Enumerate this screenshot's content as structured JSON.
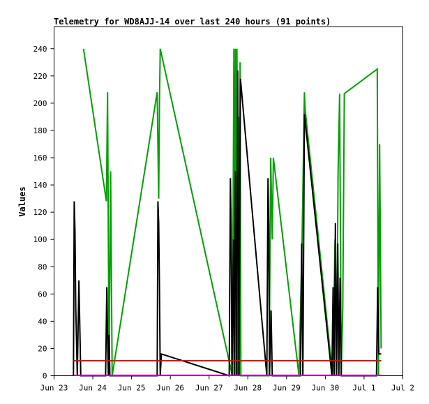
{
  "chart_data": {
    "type": "line",
    "title": "Telemetry for WD8AJJ-14 over last 240 hours (91 points)",
    "ylabel": "Values",
    "xlabel": "",
    "x_ticks": [
      "Jun 23",
      "Jun 24",
      "Jun 25",
      "Jun 26",
      "Jun 27",
      "Jun 28",
      "Jun 29",
      "Jun 30",
      "Jul 1",
      "Jul 2"
    ],
    "xlim": [
      0,
      9
    ],
    "y_ticks": [
      "0",
      "20",
      "40",
      "60",
      "80",
      "100",
      "120",
      "140",
      "160",
      "180",
      "200",
      "220",
      "240"
    ],
    "ylim": [
      0,
      256
    ],
    "grid": false,
    "legend": "none",
    "series": [
      {
        "color": "#00a000",
        "points": [
          [
            0.76,
            240
          ],
          [
            1.35,
            128
          ],
          [
            1.38,
            208
          ],
          [
            1.42,
            0
          ],
          [
            1.46,
            150
          ],
          [
            1.5,
            0
          ],
          [
            2.66,
            208
          ],
          [
            2.7,
            130
          ],
          [
            2.72,
            200
          ],
          [
            2.74,
            240
          ],
          [
            4.6,
            0
          ],
          [
            4.64,
            240
          ],
          [
            4.66,
            0
          ],
          [
            4.68,
            240
          ],
          [
            4.7,
            0
          ],
          [
            4.72,
            240
          ],
          [
            4.74,
            0
          ],
          [
            4.76,
            190
          ],
          [
            4.78,
            0
          ],
          [
            4.8,
            230
          ],
          [
            4.82,
            0
          ],
          [
            5.55,
            0
          ],
          [
            5.59,
            160
          ],
          [
            5.63,
            100
          ],
          [
            5.66,
            160
          ],
          [
            6.32,
            0
          ],
          [
            6.4,
            100
          ],
          [
            6.46,
            208
          ],
          [
            6.48,
            195
          ],
          [
            7.19,
            0
          ],
          [
            7.25,
            100
          ],
          [
            7.29,
            0
          ],
          [
            7.33,
            150
          ],
          [
            7.37,
            207
          ],
          [
            7.41,
            0
          ],
          [
            7.45,
            50
          ],
          [
            7.49,
            207
          ],
          [
            8.34,
            225
          ],
          [
            8.37,
            0
          ],
          [
            8.4,
            170
          ],
          [
            8.44,
            20
          ]
        ]
      },
      {
        "color": "#000000",
        "points": [
          [
            0.5,
            0
          ],
          [
            0.52,
            128
          ],
          [
            0.54,
            106
          ],
          [
            0.56,
            50
          ],
          [
            0.6,
            0
          ],
          [
            0.64,
            70
          ],
          [
            0.69,
            0
          ],
          [
            1.33,
            0
          ],
          [
            1.36,
            65
          ],
          [
            1.38,
            30
          ],
          [
            1.4,
            0
          ],
          [
            1.42,
            30
          ],
          [
            1.44,
            0
          ],
          [
            2.66,
            0
          ],
          [
            2.68,
            128
          ],
          [
            2.7,
            112
          ],
          [
            2.72,
            65
          ],
          [
            2.74,
            0
          ],
          [
            2.77,
            16
          ],
          [
            4.52,
            0
          ],
          [
            4.55,
            145
          ],
          [
            4.57,
            108
          ],
          [
            4.59,
            0
          ],
          [
            4.63,
            100
          ],
          [
            4.65,
            0
          ],
          [
            4.68,
            150
          ],
          [
            4.71,
            0
          ],
          [
            4.74,
            224
          ],
          [
            4.77,
            0
          ],
          [
            4.81,
            218
          ],
          [
            5.49,
            0
          ],
          [
            5.52,
            145
          ],
          [
            5.54,
            110
          ],
          [
            5.56,
            0
          ],
          [
            5.6,
            48
          ],
          [
            5.63,
            0
          ],
          [
            6.36,
            0
          ],
          [
            6.39,
            97
          ],
          [
            6.42,
            0
          ],
          [
            6.46,
            192
          ],
          [
            7.17,
            0
          ],
          [
            7.2,
            65
          ],
          [
            7.23,
            0
          ],
          [
            7.26,
            112
          ],
          [
            7.29,
            0
          ],
          [
            7.32,
            97
          ],
          [
            7.35,
            0
          ],
          [
            7.38,
            72
          ],
          [
            7.41,
            0
          ],
          [
            8.32,
            0
          ],
          [
            8.35,
            65
          ],
          [
            8.38,
            16
          ],
          [
            8.44,
            16
          ]
        ]
      },
      {
        "color": "#e00000",
        "points": [
          [
            0.5,
            11
          ],
          [
            8.44,
            11
          ]
        ]
      },
      {
        "color": "#c000c0",
        "points": [
          [
            0.5,
            0.3
          ],
          [
            8.44,
            0.3
          ]
        ]
      }
    ]
  }
}
